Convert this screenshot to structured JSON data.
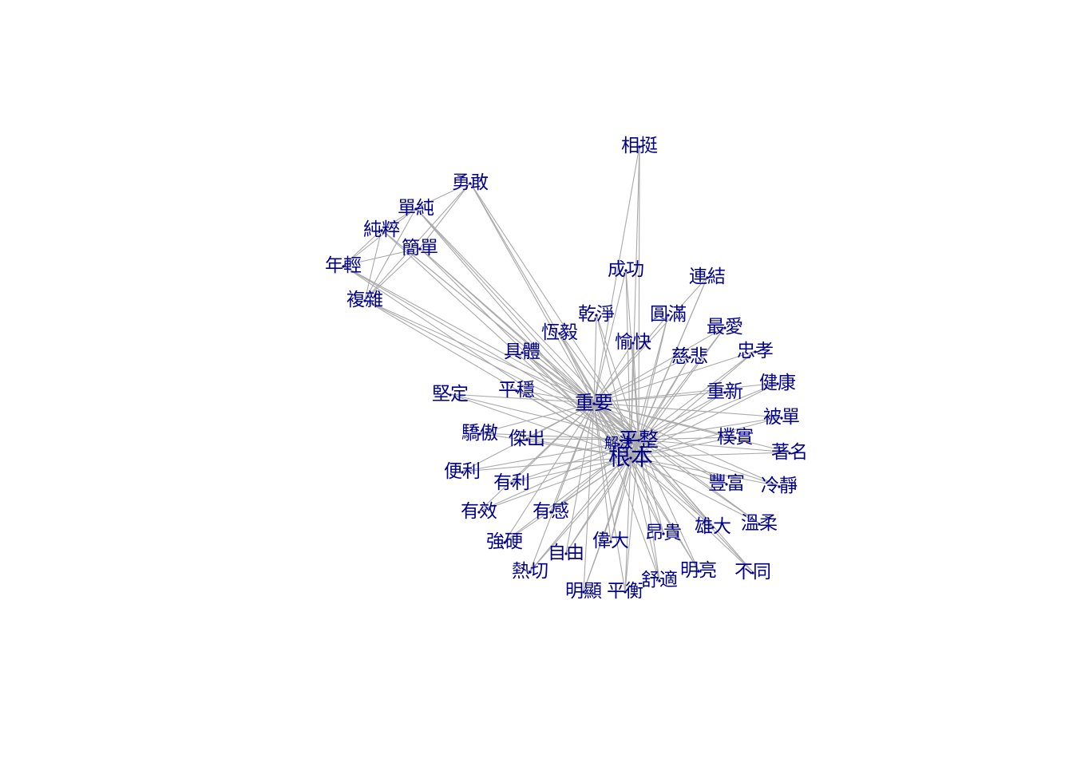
{
  "graph": {
    "colors": {
      "edge": "#a9a9a9",
      "label": "#00008b",
      "background": "#ffffff"
    },
    "hubs": [
      "根本",
      "平整",
      "重要"
    ],
    "nodes": [
      {
        "id": "相挺",
        "label": "相挺"
      },
      {
        "id": "勇敢",
        "label": "勇敢"
      },
      {
        "id": "單純",
        "label": "單純"
      },
      {
        "id": "純粹",
        "label": "純粹"
      },
      {
        "id": "簡單",
        "label": "簡單"
      },
      {
        "id": "年輕",
        "label": "年輕"
      },
      {
        "id": "複雜",
        "label": "複雜"
      },
      {
        "id": "成功",
        "label": "成功"
      },
      {
        "id": "連結",
        "label": "連結"
      },
      {
        "id": "乾淨",
        "label": "乾淨"
      },
      {
        "id": "圓滿",
        "label": "圓滿"
      },
      {
        "id": "恆毅",
        "label": "恆毅"
      },
      {
        "id": "愉快",
        "label": "愉快"
      },
      {
        "id": "最愛",
        "label": "最愛"
      },
      {
        "id": "具體",
        "label": "具體"
      },
      {
        "id": "慈悲",
        "label": "慈悲"
      },
      {
        "id": "忠孝",
        "label": "忠孝"
      },
      {
        "id": "健康",
        "label": "健康"
      },
      {
        "id": "堅定",
        "label": "堅定"
      },
      {
        "id": "平穩",
        "label": "平穩"
      },
      {
        "id": "重新",
        "label": "重新"
      },
      {
        "id": "重要",
        "label": "重要"
      },
      {
        "id": "被單",
        "label": "被單"
      },
      {
        "id": "驕傲",
        "label": "驕傲"
      },
      {
        "id": "傑出",
        "label": "傑出"
      },
      {
        "id": "解決",
        "label": "解決"
      },
      {
        "id": "平整",
        "label": "平整"
      },
      {
        "id": "樸實",
        "label": "樸實"
      },
      {
        "id": "根本",
        "label": "根本"
      },
      {
        "id": "著名",
        "label": "著名"
      },
      {
        "id": "便利",
        "label": "便利"
      },
      {
        "id": "有利",
        "label": "有利"
      },
      {
        "id": "豐富",
        "label": "豐富"
      },
      {
        "id": "冷靜",
        "label": "冷靜"
      },
      {
        "id": "有效",
        "label": "有效"
      },
      {
        "id": "有感",
        "label": "有感"
      },
      {
        "id": "溫柔",
        "label": "溫柔"
      },
      {
        "id": "雄大",
        "label": "雄大"
      },
      {
        "id": "強硬",
        "label": "強硬"
      },
      {
        "id": "偉大",
        "label": "偉大"
      },
      {
        "id": "昂貴",
        "label": "昂貴"
      },
      {
        "id": "自由",
        "label": "自由"
      },
      {
        "id": "熱切",
        "label": "熱切"
      },
      {
        "id": "明亮",
        "label": "明亮"
      },
      {
        "id": "不同",
        "label": "不同"
      },
      {
        "id": "舒適",
        "label": "舒適"
      },
      {
        "id": "明顯",
        "label": "明顯"
      },
      {
        "id": "平衡",
        "label": "平衡"
      }
    ]
  }
}
